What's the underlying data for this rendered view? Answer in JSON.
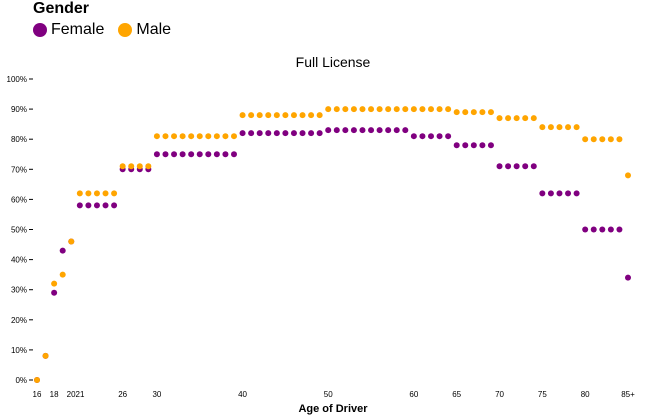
{
  "legend": {
    "title": "Gender",
    "items": [
      {
        "label": "Female",
        "color": "#800080"
      },
      {
        "label": "Male",
        "color": "#FFA500"
      }
    ]
  },
  "chart_data": {
    "type": "scatter",
    "title": "Full License",
    "xlabel": "Age of Driver",
    "ylabel": "",
    "x_tick_labels": [
      "16",
      "18",
      "2021",
      "26",
      "30",
      "40",
      "50",
      "60",
      "65",
      "70",
      "75",
      "80",
      "85+"
    ],
    "y_ticks": [
      0,
      10,
      20,
      30,
      40,
      50,
      60,
      70,
      80,
      90,
      100
    ],
    "y_tick_suffix": "%",
    "ylim": [
      0,
      100
    ],
    "xlim": [
      16,
      85
    ],
    "grid": false,
    "legend_position": "top-left",
    "series": [
      {
        "name": "Female",
        "color": "#800080",
        "points": [
          [
            16,
            0
          ],
          [
            17,
            8
          ],
          [
            18,
            29
          ],
          [
            19,
            43
          ],
          [
            20,
            46
          ],
          [
            21,
            58
          ],
          [
            22,
            58
          ],
          [
            23,
            58
          ],
          [
            24,
            58
          ],
          [
            25,
            58
          ],
          [
            26,
            70
          ],
          [
            27,
            70
          ],
          [
            28,
            70
          ],
          [
            29,
            70
          ],
          [
            30,
            75
          ],
          [
            31,
            75
          ],
          [
            32,
            75
          ],
          [
            33,
            75
          ],
          [
            34,
            75
          ],
          [
            35,
            75
          ],
          [
            36,
            75
          ],
          [
            37,
            75
          ],
          [
            38,
            75
          ],
          [
            39,
            75
          ],
          [
            40,
            82
          ],
          [
            41,
            82
          ],
          [
            42,
            82
          ],
          [
            43,
            82
          ],
          [
            44,
            82
          ],
          [
            45,
            82
          ],
          [
            46,
            82
          ],
          [
            47,
            82
          ],
          [
            48,
            82
          ],
          [
            49,
            82
          ],
          [
            50,
            83
          ],
          [
            51,
            83
          ],
          [
            52,
            83
          ],
          [
            53,
            83
          ],
          [
            54,
            83
          ],
          [
            55,
            83
          ],
          [
            56,
            83
          ],
          [
            57,
            83
          ],
          [
            58,
            83
          ],
          [
            59,
            83
          ],
          [
            60,
            81
          ],
          [
            61,
            81
          ],
          [
            62,
            81
          ],
          [
            63,
            81
          ],
          [
            64,
            81
          ],
          [
            65,
            78
          ],
          [
            66,
            78
          ],
          [
            67,
            78
          ],
          [
            68,
            78
          ],
          [
            69,
            78
          ],
          [
            70,
            71
          ],
          [
            71,
            71
          ],
          [
            72,
            71
          ],
          [
            73,
            71
          ],
          [
            74,
            71
          ],
          [
            75,
            62
          ],
          [
            76,
            62
          ],
          [
            77,
            62
          ],
          [
            78,
            62
          ],
          [
            79,
            62
          ],
          [
            80,
            50
          ],
          [
            81,
            50
          ],
          [
            82,
            50
          ],
          [
            83,
            50
          ],
          [
            84,
            50
          ],
          [
            85,
            34
          ]
        ]
      },
      {
        "name": "Male",
        "color": "#FFA500",
        "points": [
          [
            16,
            0
          ],
          [
            17,
            8
          ],
          [
            18,
            32
          ],
          [
            19,
            35
          ],
          [
            20,
            46
          ],
          [
            21,
            62
          ],
          [
            22,
            62
          ],
          [
            23,
            62
          ],
          [
            24,
            62
          ],
          [
            25,
            62
          ],
          [
            26,
            71
          ],
          [
            27,
            71
          ],
          [
            28,
            71
          ],
          [
            29,
            71
          ],
          [
            30,
            81
          ],
          [
            31,
            81
          ],
          [
            32,
            81
          ],
          [
            33,
            81
          ],
          [
            34,
            81
          ],
          [
            35,
            81
          ],
          [
            36,
            81
          ],
          [
            37,
            81
          ],
          [
            38,
            81
          ],
          [
            39,
            81
          ],
          [
            40,
            88
          ],
          [
            41,
            88
          ],
          [
            42,
            88
          ],
          [
            43,
            88
          ],
          [
            44,
            88
          ],
          [
            45,
            88
          ],
          [
            46,
            88
          ],
          [
            47,
            88
          ],
          [
            48,
            88
          ],
          [
            49,
            88
          ],
          [
            50,
            90
          ],
          [
            51,
            90
          ],
          [
            52,
            90
          ],
          [
            53,
            90
          ],
          [
            54,
            90
          ],
          [
            55,
            90
          ],
          [
            56,
            90
          ],
          [
            57,
            90
          ],
          [
            58,
            90
          ],
          [
            59,
            90
          ],
          [
            60,
            90
          ],
          [
            61,
            90
          ],
          [
            62,
            90
          ],
          [
            63,
            90
          ],
          [
            64,
            90
          ],
          [
            65,
            89
          ],
          [
            66,
            89
          ],
          [
            67,
            89
          ],
          [
            68,
            89
          ],
          [
            69,
            89
          ],
          [
            70,
            87
          ],
          [
            71,
            87
          ],
          [
            72,
            87
          ],
          [
            73,
            87
          ],
          [
            74,
            87
          ],
          [
            75,
            84
          ],
          [
            76,
            84
          ],
          [
            77,
            84
          ],
          [
            78,
            84
          ],
          [
            79,
            84
          ],
          [
            80,
            80
          ],
          [
            81,
            80
          ],
          [
            82,
            80
          ],
          [
            83,
            80
          ],
          [
            84,
            80
          ],
          [
            85,
            68
          ]
        ]
      }
    ]
  }
}
